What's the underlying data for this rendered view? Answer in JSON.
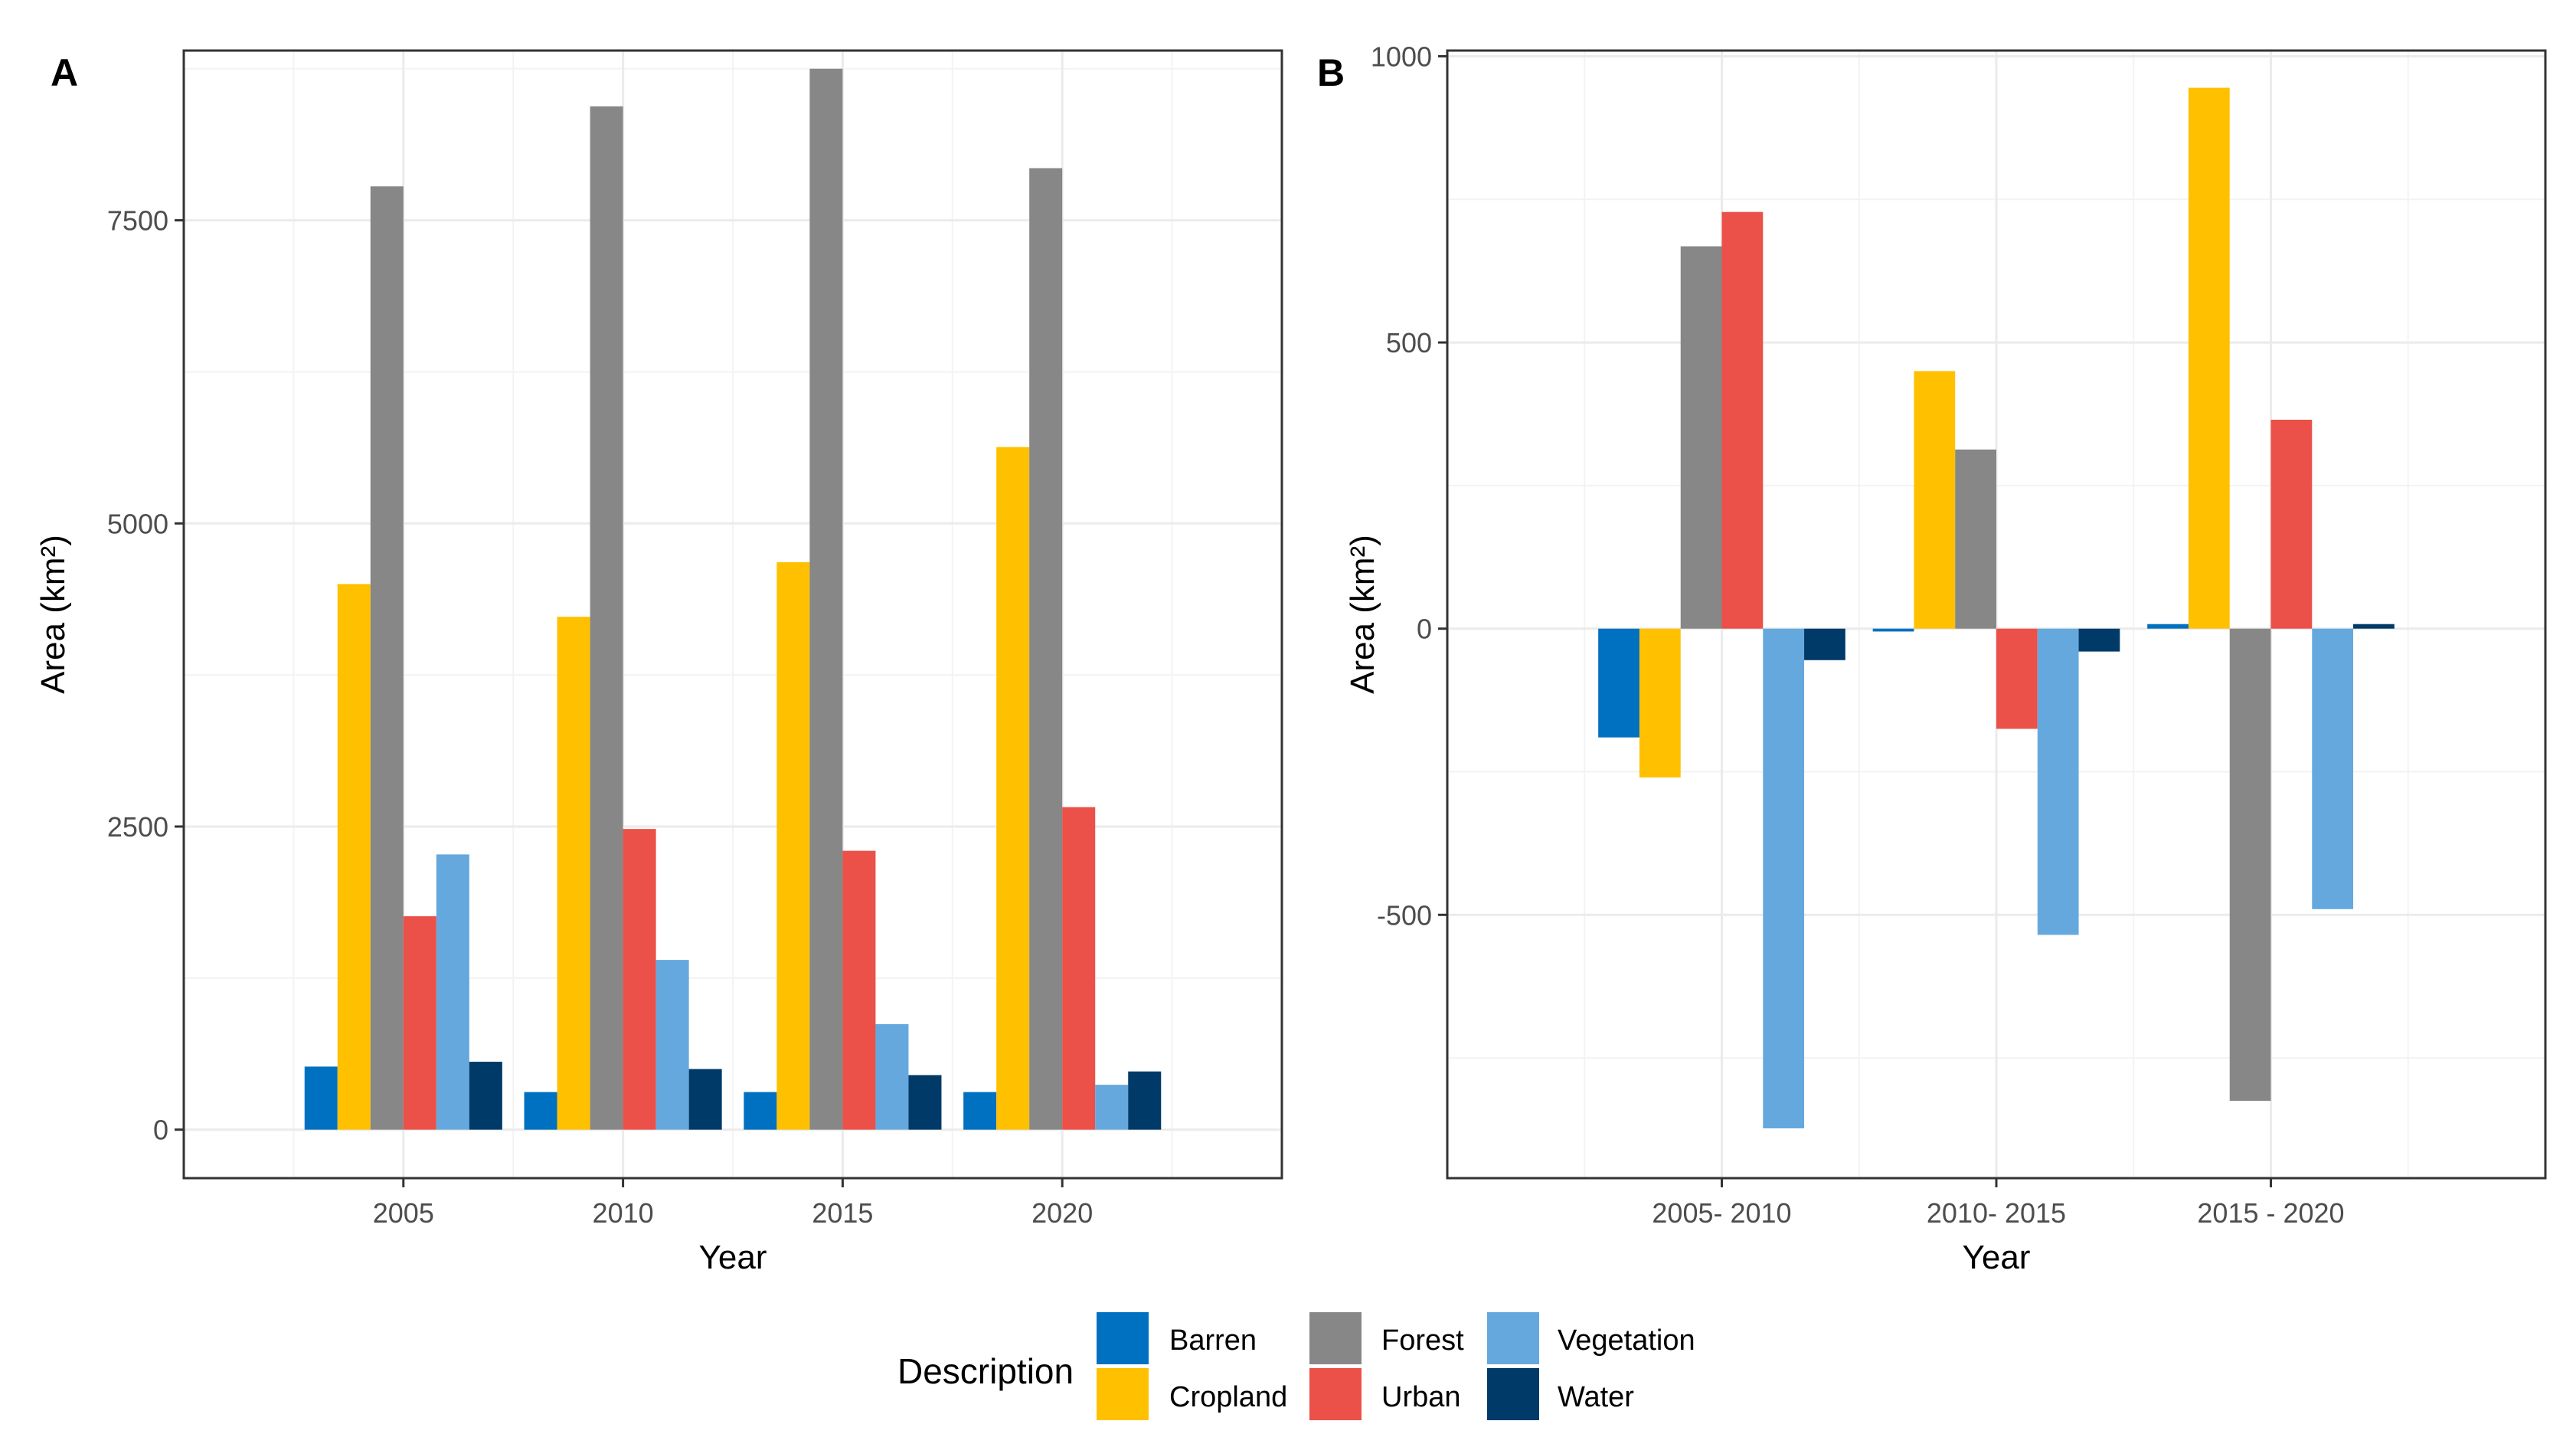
{
  "colors": {
    "Barren": "#0070c0",
    "Cropland": "#ffc000",
    "Forest": "#878787",
    "Urban": "#eb5148",
    "Vegetation": "#65a8de",
    "Water": "#003a69"
  },
  "legend": {
    "title": "Description",
    "items": [
      "Barren",
      "Cropland",
      "Forest",
      "Urban",
      "Vegetation",
      "Water"
    ]
  },
  "chart_data": [
    {
      "panel_tag": "A",
      "type": "bar",
      "title": "",
      "xlabel": "Year",
      "ylabel": "Area (km²)",
      "categories": [
        "2005",
        "2010",
        "2015",
        "2020"
      ],
      "ylim": [
        -400,
        8900
      ],
      "yticks": [
        0,
        2500,
        5000,
        7500
      ],
      "ytick_labels": [
        "0",
        "2500",
        "5000",
        "7500"
      ],
      "series": [
        {
          "name": "Barren",
          "values": [
            520,
            310,
            310,
            310
          ]
        },
        {
          "name": "Cropland",
          "values": [
            4500,
            4230,
            4680,
            5630
          ]
        },
        {
          "name": "Forest",
          "values": [
            7780,
            8440,
            8750,
            7930
          ]
        },
        {
          "name": "Urban",
          "values": [
            1760,
            2480,
            2300,
            2660
          ]
        },
        {
          "name": "Vegetation",
          "values": [
            2270,
            1400,
            870,
            370
          ]
        },
        {
          "name": "Water",
          "values": [
            560,
            500,
            450,
            480
          ]
        }
      ]
    },
    {
      "panel_tag": "B",
      "type": "bar",
      "title": "",
      "xlabel": "Year",
      "ylabel": "Area (km²)",
      "categories": [
        "2005- 2010",
        "2010- 2015",
        "2015 - 2020"
      ],
      "ylim": [
        -960,
        1010
      ],
      "yticks": [
        -500,
        0,
        500,
        1000
      ],
      "ytick_labels": [
        "-500",
        "0",
        "500",
        "1000"
      ],
      "series": [
        {
          "name": "Barren",
          "values": [
            -190,
            -5,
            8
          ]
        },
        {
          "name": "Cropland",
          "values": [
            -260,
            450,
            945
          ]
        },
        {
          "name": "Forest",
          "values": [
            668,
            313,
            -825
          ]
        },
        {
          "name": "Urban",
          "values": [
            728,
            -175,
            365
          ]
        },
        {
          "name": "Vegetation",
          "values": [
            -873,
            -535,
            -490
          ]
        },
        {
          "name": "Water",
          "values": [
            -55,
            -40,
            8
          ]
        }
      ]
    }
  ]
}
